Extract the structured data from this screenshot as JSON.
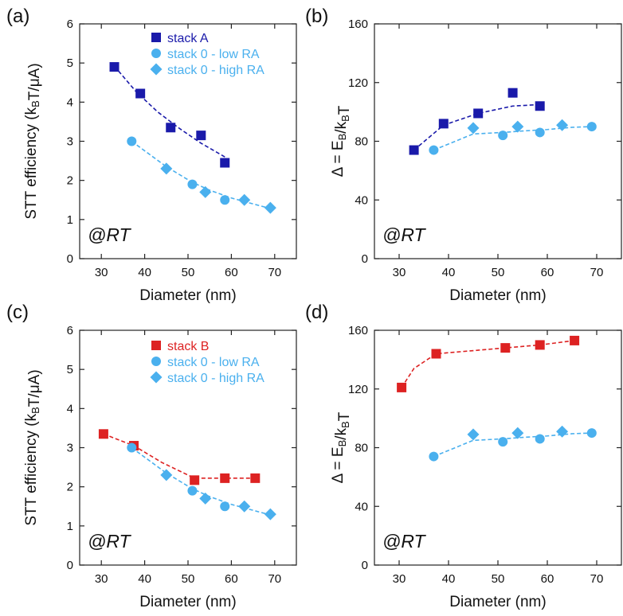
{
  "colors": {
    "stack_A": "#1a1aaa",
    "stack_B": "#dd2222",
    "stack_0": "#4ab0ee"
  },
  "chart_data": [
    {
      "panel": "(a)",
      "type": "scatter",
      "annotation": "@RT",
      "xlabel": "Diameter (nm)",
      "ylabel": "STT efficiency (kBT/μA)",
      "xlim": [
        25,
        75
      ],
      "ylim": [
        0,
        6
      ],
      "xticks": [
        30,
        40,
        50,
        60,
        70
      ],
      "yticks": [
        0,
        1,
        2,
        3,
        4,
        5,
        6
      ],
      "legend": "top-right",
      "grid": false,
      "series": [
        {
          "name": "stack A",
          "marker": "square",
          "color_key": "stack_A",
          "x": [
            33,
            39,
            46,
            53,
            58.5
          ],
          "y": [
            4.9,
            4.22,
            3.35,
            3.15,
            2.45
          ],
          "fit": {
            "x": [
              33,
              38,
              43,
              48,
              53,
              58.5
            ],
            "y": [
              4.92,
              4.27,
              3.75,
              3.33,
              2.95,
              2.6
            ]
          }
        },
        {
          "name": "stack 0 - low RA",
          "marker": "circle",
          "color_key": "stack_0",
          "x": [
            37,
            51,
            58.5
          ],
          "y": [
            3.0,
            1.9,
            1.5
          ],
          "fit": {
            "x": [
              37,
              45,
              51,
              55,
              60,
              65,
              69
            ],
            "y": [
              3.0,
              2.35,
              1.95,
              1.75,
              1.55,
              1.4,
              1.28
            ]
          }
        },
        {
          "name": "stack 0 - high RA",
          "marker": "diamond",
          "color_key": "stack_0",
          "x": [
            45,
            54,
            63,
            69
          ],
          "y": [
            2.3,
            1.7,
            1.5,
            1.3
          ]
        }
      ]
    },
    {
      "panel": "(b)",
      "type": "scatter",
      "annotation": "@RT",
      "xlabel": "Diameter (nm)",
      "ylabel": "Δ = EB/kBT",
      "xlim": [
        25,
        75
      ],
      "ylim": [
        0,
        160
      ],
      "xticks": [
        30,
        40,
        50,
        60,
        70
      ],
      "yticks": [
        0,
        40,
        80,
        120,
        160
      ],
      "grid": false,
      "series": [
        {
          "name": "stack A",
          "marker": "square",
          "color_key": "stack_A",
          "x": [
            33,
            39,
            46,
            53,
            58.5
          ],
          "y": [
            74,
            92,
            99,
            113,
            104
          ],
          "fit": {
            "x": [
              33,
              39,
              46,
              53,
              58.5
            ],
            "y": [
              74,
              91,
              99,
              104,
              105
            ]
          }
        },
        {
          "name": "stack 0 - low RA",
          "marker": "circle",
          "color_key": "stack_0",
          "x": [
            37,
            51,
            58.5,
            69
          ],
          "y": [
            74,
            84,
            86,
            90
          ],
          "fit": {
            "x": [
              37,
              45,
              51,
              55,
              60,
              65,
              69
            ],
            "y": [
              74,
              85,
              86,
              87,
              88,
              89.5,
              90
            ]
          }
        },
        {
          "name": "stack 0 - high RA",
          "marker": "diamond",
          "color_key": "stack_0",
          "x": [
            45,
            54,
            63
          ],
          "y": [
            89,
            90,
            91
          ]
        }
      ]
    },
    {
      "panel": "(c)",
      "type": "scatter",
      "annotation": "@RT",
      "xlabel": "Diameter (nm)",
      "ylabel": "STT efficiency (kBT/μA)",
      "xlim": [
        25,
        75
      ],
      "ylim": [
        0,
        6
      ],
      "xticks": [
        30,
        40,
        50,
        60,
        70
      ],
      "yticks": [
        0,
        1,
        2,
        3,
        4,
        5,
        6
      ],
      "legend": "top-right",
      "grid": false,
      "series": [
        {
          "name": "stack B",
          "marker": "square",
          "color_key": "stack_B",
          "x": [
            30.5,
            37.5,
            51.5,
            58.5,
            65.5
          ],
          "y": [
            3.35,
            3.05,
            2.17,
            2.22,
            2.22
          ],
          "fit": {
            "x": [
              30.5,
              37.5,
              44,
              51.5,
              58.5,
              65.5
            ],
            "y": [
              3.35,
              3.05,
              2.62,
              2.22,
              2.22,
              2.22
            ]
          }
        },
        {
          "name": "stack 0 - low RA",
          "marker": "circle",
          "color_key": "stack_0",
          "x": [
            37,
            51,
            58.5
          ],
          "y": [
            3.0,
            1.9,
            1.5
          ],
          "fit": {
            "x": [
              37,
              45,
              51,
              55,
              60,
              65,
              69
            ],
            "y": [
              3.0,
              2.35,
              1.95,
              1.75,
              1.55,
              1.4,
              1.28
            ]
          }
        },
        {
          "name": "stack 0 - high RA",
          "marker": "diamond",
          "color_key": "stack_0",
          "x": [
            45,
            54,
            63,
            69
          ],
          "y": [
            2.3,
            1.7,
            1.5,
            1.3
          ]
        }
      ]
    },
    {
      "panel": "(d)",
      "type": "scatter",
      "annotation": "@RT",
      "xlabel": "Diameter (nm)",
      "ylabel": "Δ = EB/kBT",
      "xlim": [
        25,
        75
      ],
      "ylim": [
        0,
        160
      ],
      "xticks": [
        30,
        40,
        50,
        60,
        70
      ],
      "yticks": [
        0,
        40,
        80,
        120,
        160
      ],
      "grid": false,
      "series": [
        {
          "name": "stack B",
          "marker": "square",
          "color_key": "stack_B",
          "x": [
            30.5,
            37.5,
            51.5,
            58.5,
            65.5
          ],
          "y": [
            121,
            144,
            148,
            150,
            153
          ],
          "fit": {
            "x": [
              30.5,
              33,
              37.5,
              51.5,
              58.5,
              65.5
            ],
            "y": [
              121,
              134,
              144,
              148,
              150,
              153
            ]
          }
        },
        {
          "name": "stack 0 - low RA",
          "marker": "circle",
          "color_key": "stack_0",
          "x": [
            37,
            51,
            58.5,
            69
          ],
          "y": [
            74,
            84,
            86,
            90
          ],
          "fit": {
            "x": [
              37,
              45,
              51,
              55,
              60,
              65,
              69
            ],
            "y": [
              74,
              85,
              86,
              87,
              88,
              89.5,
              90
            ]
          }
        },
        {
          "name": "stack 0 - high RA",
          "marker": "diamond",
          "color_key": "stack_0",
          "x": [
            45,
            54,
            63
          ],
          "y": [
            89,
            90,
            91
          ]
        }
      ]
    }
  ]
}
